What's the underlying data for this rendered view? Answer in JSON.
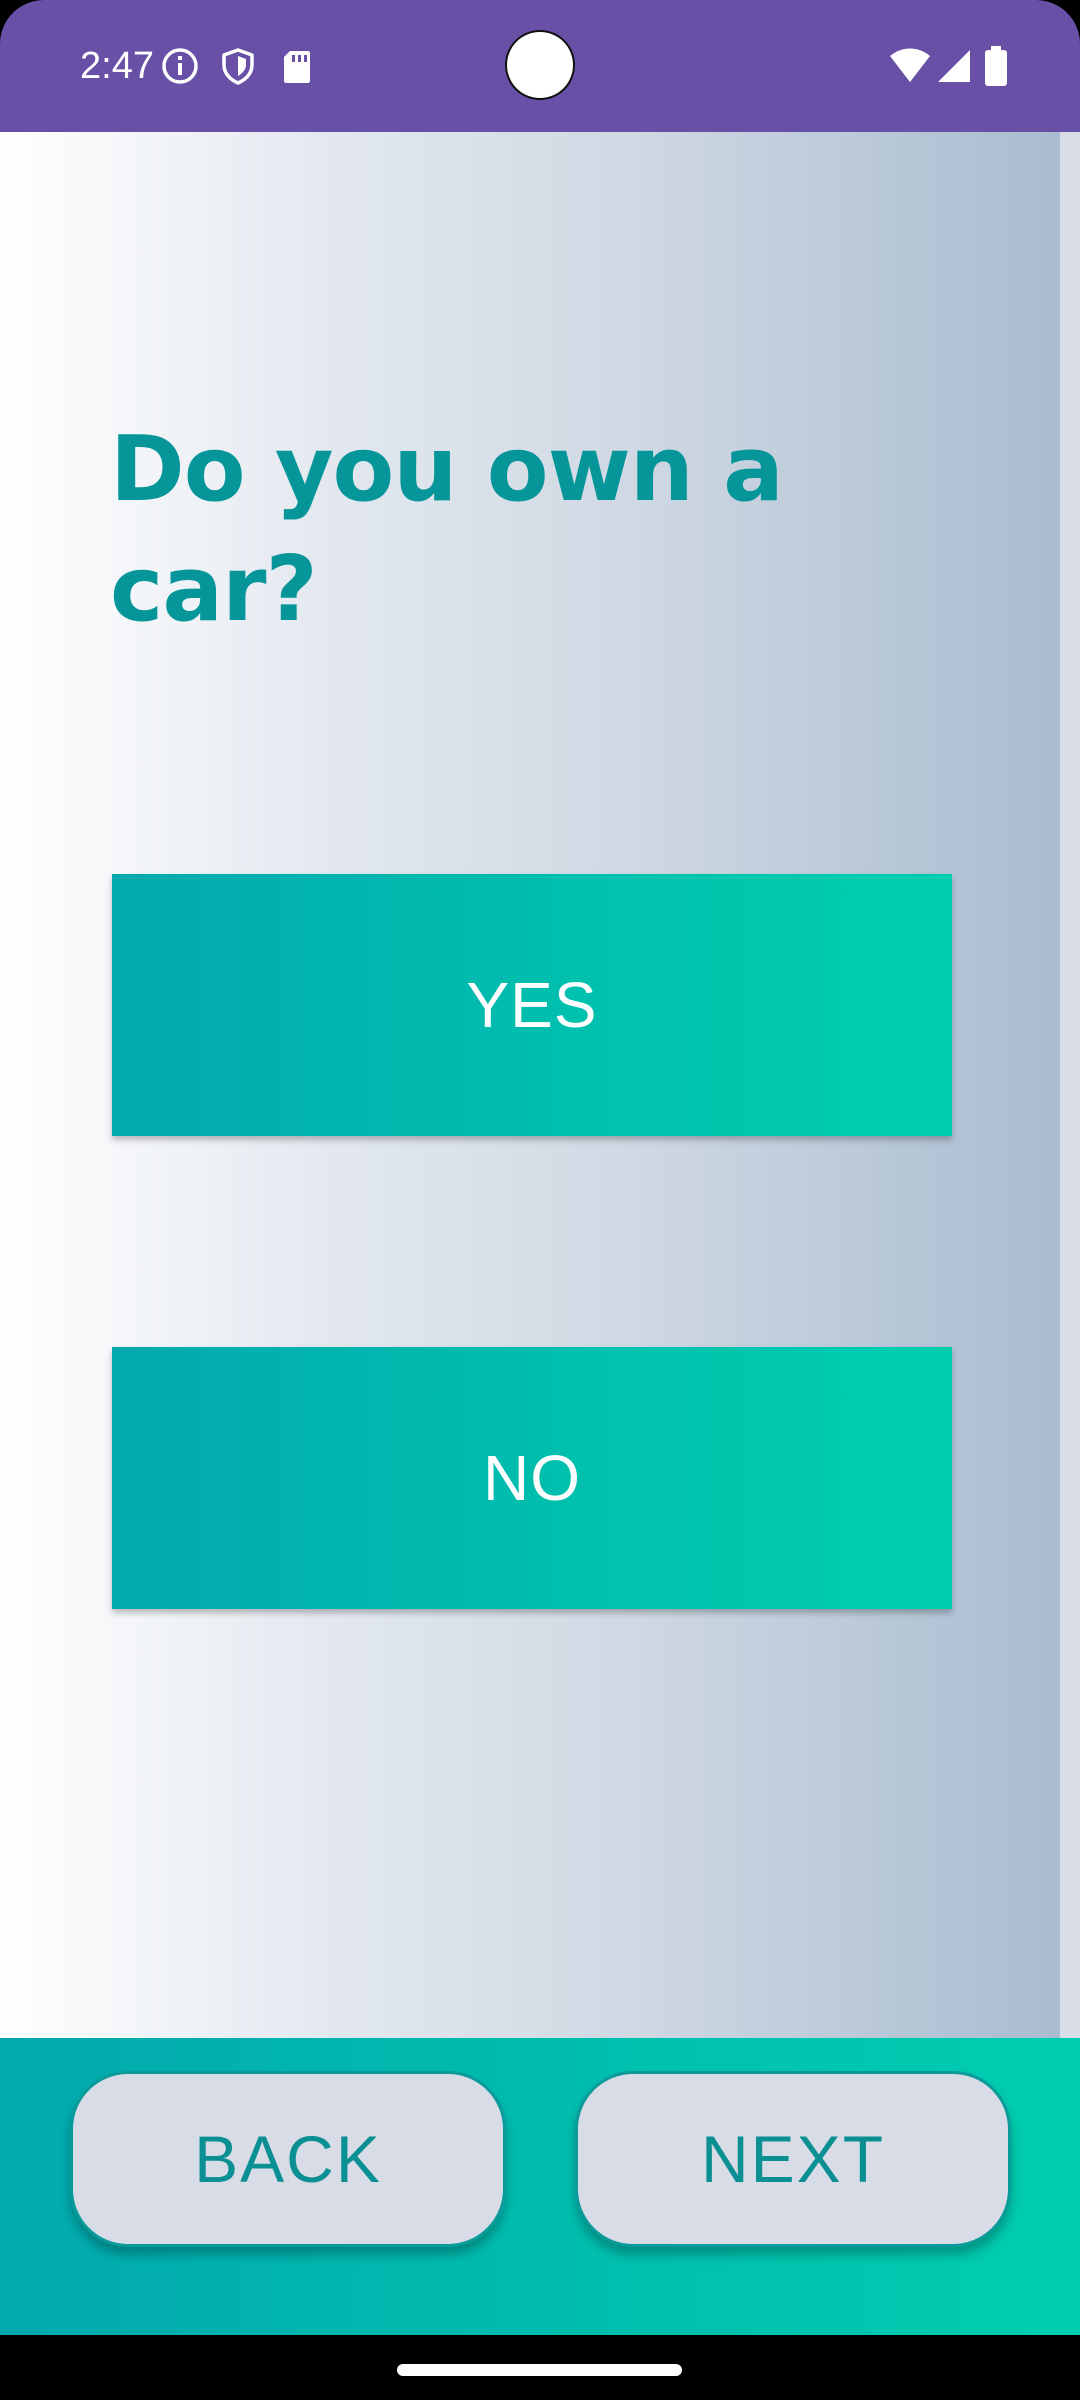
{
  "status_bar": {
    "time": "2:47",
    "left_icons": [
      "info-icon",
      "shield-icon",
      "sd-card-icon"
    ],
    "right_icons": [
      "wifi-icon",
      "signal-icon",
      "battery-icon"
    ],
    "color": "#6750a6"
  },
  "question": {
    "text": "Do you own a car?",
    "color": "#06969a"
  },
  "answers": {
    "yes_label": "YES",
    "no_label": "NO"
  },
  "navigation": {
    "back_label": "BACK",
    "next_label": "NEXT"
  },
  "colors": {
    "accent": "#00c2ae",
    "accent_dark": "#02a9ae",
    "nav_button_bg": "#d8dce6"
  }
}
